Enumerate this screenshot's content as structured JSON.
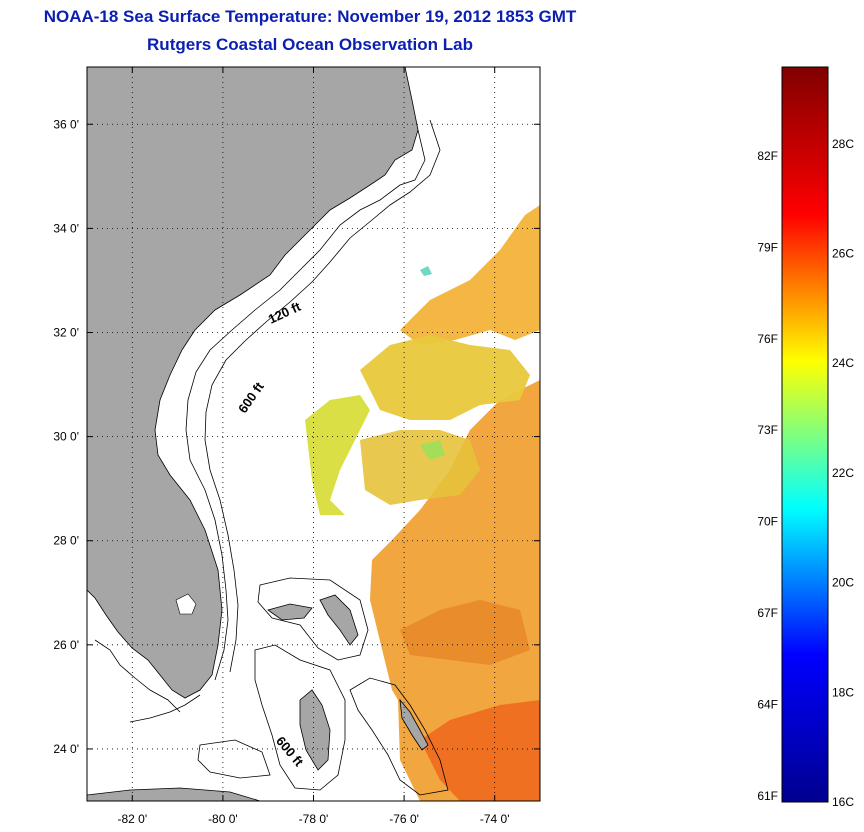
{
  "title": "NOAA-18 Sea Surface Temperature:  November 19, 2012 1853 GMT",
  "subtitle": "Rutgers Coastal Ocean Observation Lab",
  "map": {
    "lat_ticks": [
      {
        "lat": 36,
        "label": "36 0'"
      },
      {
        "lat": 34,
        "label": "34 0'"
      },
      {
        "lat": 32,
        "label": "32 0'"
      },
      {
        "lat": 30,
        "label": "30 0'"
      },
      {
        "lat": 28,
        "label": "28 0'"
      },
      {
        "lat": 26,
        "label": "26 0'"
      },
      {
        "lat": 24,
        "label": "24 0'"
      }
    ],
    "lon_ticks": [
      {
        "lon": -82,
        "label": "-82 0'"
      },
      {
        "lon": -80,
        "label": "-80 0'"
      },
      {
        "lon": -78,
        "label": "-78 0'"
      },
      {
        "lon": -76,
        "label": "-76 0'"
      },
      {
        "lon": -74,
        "label": "-74 0'"
      }
    ],
    "lat_range": [
      23,
      37.1
    ],
    "lon_range": [
      -83,
      -73
    ],
    "grid": "dotted",
    "land_color": "#a6a6a6",
    "contour_labels": [
      {
        "label": "120 ft",
        "lon": -78.6,
        "lat": 32.3
      },
      {
        "label": "600 ft",
        "lon": -79.3,
        "lat": 30.7
      },
      {
        "label": "600 ft",
        "lon": -78.6,
        "lat": 23.9
      }
    ]
  },
  "colorbar": {
    "range_c": [
      16,
      29.4
    ],
    "colors": [
      "#00008f",
      "#0000ff",
      "#00ffff",
      "#ffff00",
      "#ff0000",
      "#800000"
    ],
    "c_ticks": [
      {
        "value": 28,
        "label": "28C"
      },
      {
        "value": 26,
        "label": "26C"
      },
      {
        "value": 24,
        "label": "24C"
      },
      {
        "value": 22,
        "label": "22C"
      },
      {
        "value": 20,
        "label": "20C"
      },
      {
        "value": 18,
        "label": "18C"
      },
      {
        "value": 16,
        "label": "16C"
      }
    ],
    "f_ticks": [
      {
        "value": 82,
        "label": "82F"
      },
      {
        "value": 79,
        "label": "79F"
      },
      {
        "value": 76,
        "label": "76F"
      },
      {
        "value": 73,
        "label": "73F"
      },
      {
        "value": 70,
        "label": "70F"
      },
      {
        "value": 67,
        "label": "67F"
      },
      {
        "value": 64,
        "label": "64F"
      },
      {
        "value": 61,
        "label": "61F"
      }
    ]
  }
}
